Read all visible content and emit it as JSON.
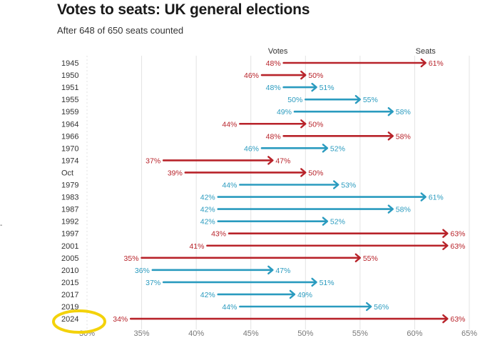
{
  "title": "Votes to seats: UK general elections",
  "subtitle": "After 648 of 650 seats counted",
  "stray_mark": "-",
  "colors": {
    "red": "#b8232a",
    "blue": "#2a9bbf",
    "highlight": "#f3d20b",
    "grid": "#e3e3e3"
  },
  "chart_data": {
    "type": "arrow",
    "title": "Votes to seats: UK general elections",
    "subtitle": "After 648 of 650 seats counted",
    "column_headers": {
      "start": "Votes",
      "end": "Seats"
    },
    "x_ticks": [
      "30%",
      "35%",
      "40%",
      "45%",
      "50%",
      "55%",
      "60%",
      "65%"
    ],
    "xlim": [
      30,
      65
    ],
    "grid": true,
    "highlighted_row": "2024",
    "rows": [
      {
        "label": "1945",
        "votes": 48,
        "seats": 61,
        "votes_label": "48%",
        "seats_label": "61%",
        "color": "red"
      },
      {
        "label": "1950",
        "votes": 46,
        "seats": 50,
        "votes_label": "46%",
        "seats_label": "50%",
        "color": "red"
      },
      {
        "label": "1951",
        "votes": 48,
        "seats": 51,
        "votes_label": "48%",
        "seats_label": "51%",
        "color": "blue"
      },
      {
        "label": "1955",
        "votes": 50,
        "seats": 55,
        "votes_label": "50%",
        "seats_label": "55%",
        "color": "blue"
      },
      {
        "label": "1959",
        "votes": 49,
        "seats": 58,
        "votes_label": "49%",
        "seats_label": "58%",
        "color": "blue"
      },
      {
        "label": "1964",
        "votes": 44,
        "seats": 50,
        "votes_label": "44%",
        "seats_label": "50%",
        "color": "red"
      },
      {
        "label": "1966",
        "votes": 48,
        "seats": 58,
        "votes_label": "48%",
        "seats_label": "58%",
        "color": "red"
      },
      {
        "label": "1970",
        "votes": 46,
        "seats": 52,
        "votes_label": "46%",
        "seats_label": "52%",
        "color": "blue"
      },
      {
        "label": "1974",
        "votes": 37,
        "seats": 47,
        "votes_label": "37%",
        "seats_label": "47%",
        "color": "red"
      },
      {
        "label": "Oct",
        "votes": 39,
        "seats": 50,
        "votes_label": "39%",
        "seats_label": "50%",
        "color": "red"
      },
      {
        "label": "1979",
        "votes": 44,
        "seats": 53,
        "votes_label": "44%",
        "seats_label": "53%",
        "color": "blue"
      },
      {
        "label": "1983",
        "votes": 42,
        "seats": 61,
        "votes_label": "42%",
        "seats_label": "61%",
        "color": "blue"
      },
      {
        "label": "1987",
        "votes": 42,
        "seats": 58,
        "votes_label": "42%",
        "seats_label": "58%",
        "color": "blue"
      },
      {
        "label": "1992",
        "votes": 42,
        "seats": 52,
        "votes_label": "42%",
        "seats_label": "52%",
        "color": "blue"
      },
      {
        "label": "1997",
        "votes": 43,
        "seats": 63,
        "votes_label": "43%",
        "seats_label": "63%",
        "color": "red"
      },
      {
        "label": "2001",
        "votes": 41,
        "seats": 63,
        "votes_label": "41%",
        "seats_label": "63%",
        "color": "red"
      },
      {
        "label": "2005",
        "votes": 35,
        "seats": 55,
        "votes_label": "35%",
        "seats_label": "55%",
        "color": "red"
      },
      {
        "label": "2010",
        "votes": 36,
        "seats": 47,
        "votes_label": "36%",
        "seats_label": "47%",
        "color": "blue"
      },
      {
        "label": "2015",
        "votes": 37,
        "seats": 51,
        "votes_label": "37%",
        "seats_label": "51%",
        "color": "blue"
      },
      {
        "label": "2017",
        "votes": 42,
        "seats": 49,
        "votes_label": "42%",
        "seats_label": "49%",
        "color": "blue"
      },
      {
        "label": "2019",
        "votes": 44,
        "seats": 56,
        "votes_label": "44%",
        "seats_label": "56%",
        "color": "blue"
      },
      {
        "label": "2024",
        "votes": 34,
        "seats": 63,
        "votes_label": "34%",
        "seats_label": "63%",
        "color": "red"
      }
    ]
  }
}
